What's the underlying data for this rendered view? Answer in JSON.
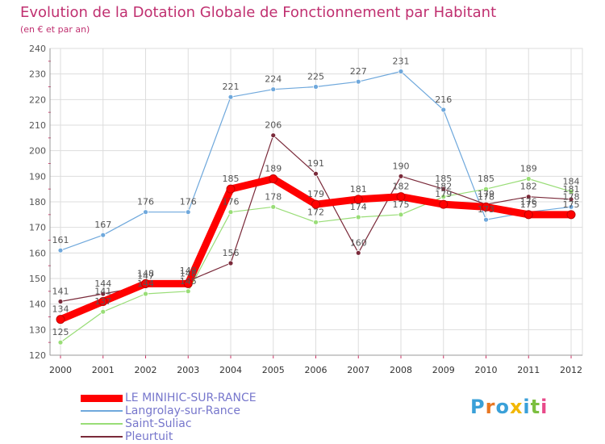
{
  "chart_data": {
    "type": "line",
    "title": "Evolution de la Dotation Globale de Fonctionnement par Habitant",
    "subtitle": "(en € et par an)",
    "x": [
      "2000",
      "2001",
      "2002",
      "2003",
      "2004",
      "2005",
      "2006",
      "2007",
      "2008",
      "2009",
      "2010",
      "2011",
      "2012"
    ],
    "ylim": [
      120,
      240
    ],
    "yticks": [
      120,
      130,
      140,
      150,
      160,
      170,
      180,
      190,
      200,
      210,
      220,
      230,
      240
    ],
    "grid": true,
    "legend_position": "bottom-left",
    "series": [
      {
        "name": "LE MINIHIC-SUR-RANCE",
        "color": "#ff0000",
        "values": [
          134,
          141,
          148,
          148,
          185,
          189,
          179,
          181,
          182,
          179,
          178,
          175,
          175
        ]
      },
      {
        "name": "Langrolay-sur-Rance",
        "color": "#6fa8dc",
        "values": [
          161,
          167,
          176,
          176,
          221,
          224,
          225,
          227,
          231,
          216,
          173,
          176,
          178
        ]
      },
      {
        "name": "Saint-Suliac",
        "color": "#99dd77",
        "values": [
          125,
          137,
          144,
          145,
          176,
          178,
          172,
          174,
          175,
          182,
          185,
          189,
          184
        ]
      },
      {
        "name": "Pleurtuit",
        "color": "#7a2a3a",
        "values": [
          141,
          144,
          147,
          149,
          156,
          206,
          191,
          160,
          190,
          185,
          179,
          182,
          181
        ]
      }
    ]
  },
  "brand": "Proxiti"
}
